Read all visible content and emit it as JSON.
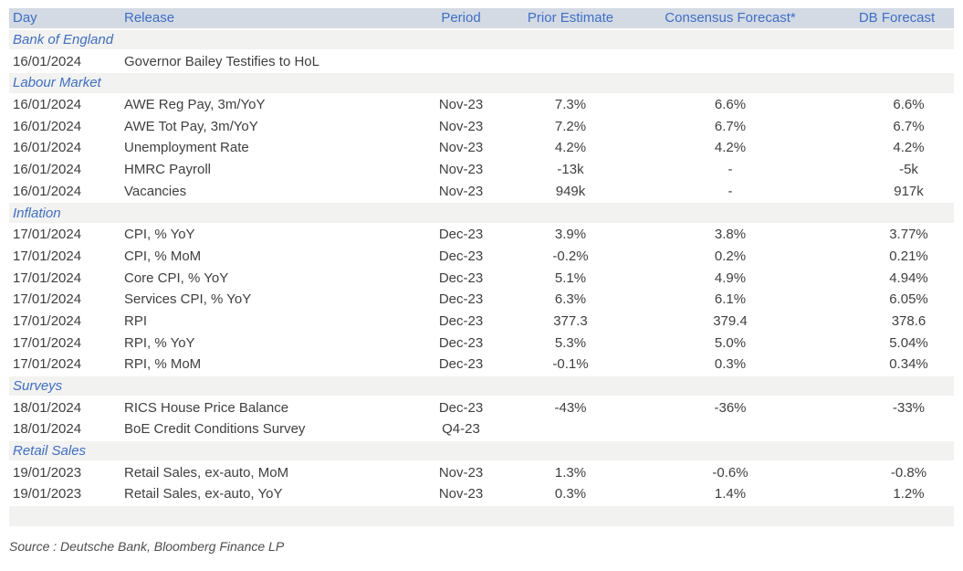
{
  "colors": {
    "header_bg": "#d3dae3",
    "header_text": "#3e6ec8",
    "section_bg": "#f2f2f0",
    "section_text": "#3e6ec8",
    "data_text": "#3f3f3f",
    "source_text": "#4d4d4d",
    "page_bg": "#ffffff"
  },
  "table": {
    "columns": [
      "Day",
      "Release",
      "Period",
      "Prior Estimate",
      "Consensus Forecast*",
      "DB Forecast"
    ],
    "sections": [
      {
        "title": "Bank of England",
        "rows": [
          {
            "day": "16/01/2024",
            "release": "Governor Bailey Testifies to HoL",
            "period": "",
            "prior": "",
            "consensus": "",
            "db": ""
          }
        ]
      },
      {
        "title": "Labour Market",
        "rows": [
          {
            "day": "16/01/2024",
            "release": "AWE Reg Pay, 3m/YoY",
            "period": "Nov-23",
            "prior": "7.3%",
            "consensus": "6.6%",
            "db": "6.6%"
          },
          {
            "day": "16/01/2024",
            "release": "AWE Tot Pay, 3m/YoY",
            "period": "Nov-23",
            "prior": "7.2%",
            "consensus": "6.7%",
            "db": "6.7%"
          },
          {
            "day": "16/01/2024",
            "release": "Unemployment Rate",
            "period": "Nov-23",
            "prior": "4.2%",
            "consensus": "4.2%",
            "db": "4.2%"
          },
          {
            "day": "16/01/2024",
            "release": "HMRC Payroll",
            "period": "Nov-23",
            "prior": "-13k",
            "consensus": "-",
            "db": "-5k"
          },
          {
            "day": "16/01/2024",
            "release": "Vacancies",
            "period": "Nov-23",
            "prior": "949k",
            "consensus": "-",
            "db": "917k"
          }
        ]
      },
      {
        "title": "Inflation",
        "rows": [
          {
            "day": "17/01/2024",
            "release": "CPI, % YoY",
            "period": "Dec-23",
            "prior": "3.9%",
            "consensus": "3.8%",
            "db": "3.77%"
          },
          {
            "day": "17/01/2024",
            "release": "CPI, % MoM",
            "period": "Dec-23",
            "prior": "-0.2%",
            "consensus": "0.2%",
            "db": "0.21%"
          },
          {
            "day": "17/01/2024",
            "release": "Core CPI, % YoY",
            "period": "Dec-23",
            "prior": "5.1%",
            "consensus": "4.9%",
            "db": "4.94%"
          },
          {
            "day": "17/01/2024",
            "release": "Services CPI, % YoY",
            "period": "Dec-23",
            "prior": "6.3%",
            "consensus": "6.1%",
            "db": "6.05%"
          },
          {
            "day": "17/01/2024",
            "release": "RPI",
            "period": "Dec-23",
            "prior": "377.3",
            "consensus": "379.4",
            "db": "378.6"
          },
          {
            "day": "17/01/2024",
            "release": "RPI, % YoY",
            "period": "Dec-23",
            "prior": "5.3%",
            "consensus": "5.0%",
            "db": "5.04%"
          },
          {
            "day": "17/01/2024",
            "release": "RPI, % MoM",
            "period": "Dec-23",
            "prior": "-0.1%",
            "consensus": "0.3%",
            "db": "0.34%"
          }
        ]
      },
      {
        "title": "Surveys",
        "rows": [
          {
            "day": "18/01/2024",
            "release": "RICS House Price Balance",
            "period": "Dec-23",
            "prior": "-43%",
            "consensus": "-36%",
            "db": "-33%"
          },
          {
            "day": "18/01/2024",
            "release": "BoE Credit Conditions Survey",
            "period": "Q4-23",
            "prior": "",
            "consensus": "",
            "db": ""
          }
        ]
      },
      {
        "title": "Retail Sales",
        "rows": [
          {
            "day": "19/01/2023",
            "release": "Retail Sales, ex-auto, MoM",
            "period": "Nov-23",
            "prior": "1.3%",
            "consensus": "-0.6%",
            "db": "-0.8%"
          },
          {
            "day": "19/01/2023",
            "release": "Retail Sales, ex-auto, YoY",
            "period": "Nov-23",
            "prior": "0.3%",
            "consensus": "1.4%",
            "db": "1.2%"
          }
        ]
      }
    ]
  },
  "source": "Source : Deutsche Bank, Bloomberg Finance LP"
}
